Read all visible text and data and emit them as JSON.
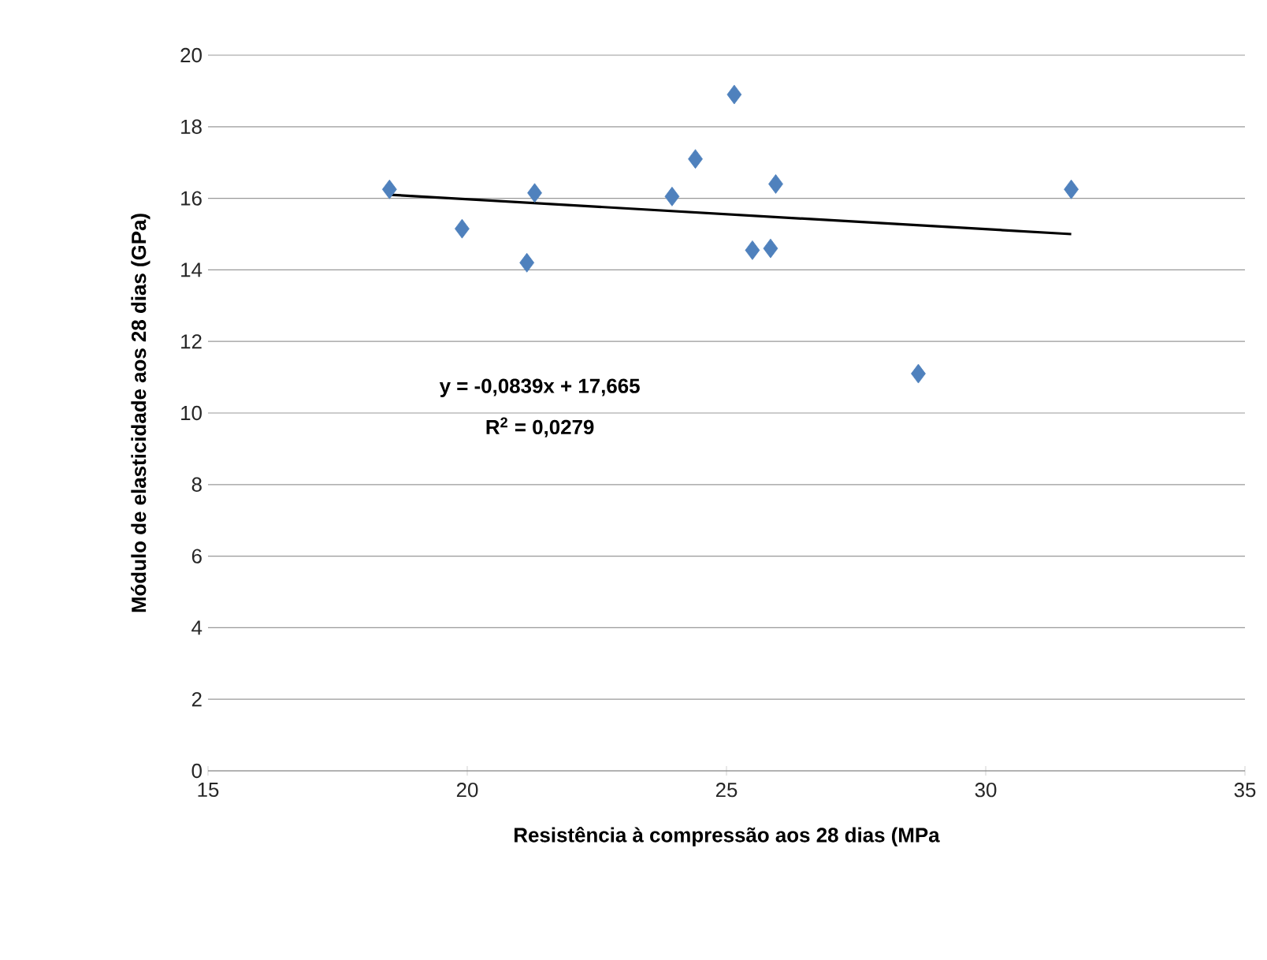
{
  "chart_data": {
    "type": "scatter",
    "xlabel": "Resistência à compressão aos 28 dias (MPa",
    "ylabel": "Módulo de elasticidade  aos  28 dias  (GPa)",
    "annotations": [
      "y = -0,0839x + 17,665",
      "R$^{2}$ = 0,0279"
    ],
    "xlim": [
      15,
      35
    ],
    "ylim": [
      0,
      20
    ],
    "xticks": [
      15,
      20,
      25,
      30,
      35
    ],
    "yticks": [
      0,
      2,
      4,
      6,
      8,
      10,
      12,
      14,
      16,
      18,
      20
    ],
    "grid": "y",
    "series": [
      {
        "color": "#4f81bd",
        "marker": "diamond",
        "x": [
          18.5,
          19.9,
          21.15,
          21.3,
          23.95,
          24.4,
          25.15,
          25.5,
          25.85,
          25.95,
          28.7,
          31.65
        ],
        "values": [
          16.25,
          15.15,
          14.2,
          16.15,
          16.05,
          17.1,
          18.9,
          14.55,
          14.6,
          16.4,
          11.1,
          16.25
        ]
      },
      {
        "type": "line",
        "marker": "none",
        "color": "#000000",
        "x": [
          18.5,
          31.65
        ],
        "values": [
          16.1,
          15.0
        ]
      }
    ]
  }
}
